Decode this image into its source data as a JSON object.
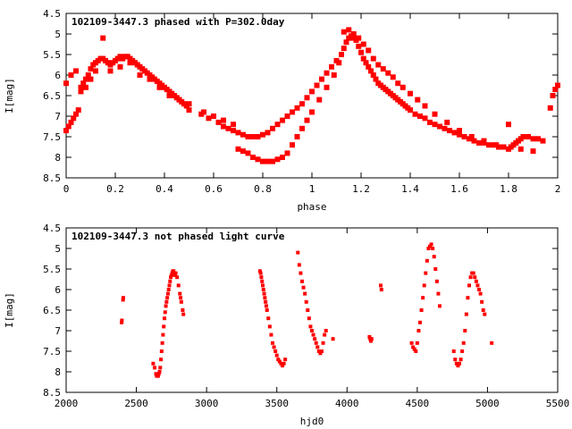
{
  "chart_data": [
    {
      "type": "scatter",
      "title": "102109-3447.3 phased with P=302.0day",
      "xlabel": "phase",
      "ylabel": "I[mag]",
      "xlim": [
        0,
        2
      ],
      "ylim": [
        4.5,
        8.5
      ],
      "y_inverted": true,
      "xticks": [
        0,
        0.2,
        0.4,
        0.6,
        0.8,
        1,
        1.2,
        1.4,
        1.6,
        1.8,
        2
      ],
      "xtick_labels": [
        "0",
        "0.2",
        "0.4",
        "0.6",
        "0.8",
        "1",
        "1.2",
        "1.4",
        "1.6",
        "1.8",
        "2"
      ],
      "yticks": [
        4.5,
        5,
        5.5,
        6,
        6.5,
        7,
        7.5,
        8,
        8.5
      ],
      "ytick_labels": [
        "4.5",
        "5",
        "5.5",
        "6",
        "6.5",
        "7",
        "7.5",
        "8",
        "8.5"
      ],
      "grid": false,
      "marker_color": "#ff0000",
      "series": [
        {
          "x": [
            0.0,
            0.01,
            0.02,
            0.03,
            0.04,
            0.05,
            0.06,
            0.07,
            0.08,
            0.09,
            0.1,
            0.11,
            0.12,
            0.13,
            0.14,
            0.15,
            0.16,
            0.17,
            0.18,
            0.19,
            0.2,
            0.21,
            0.22,
            0.23,
            0.24,
            0.25,
            0.26,
            0.27,
            0.28,
            0.29,
            0.3,
            0.31,
            0.32,
            0.33,
            0.34,
            0.35,
            0.36,
            0.37,
            0.38,
            0.39,
            0.4,
            0.41,
            0.42,
            0.43,
            0.44,
            0.45,
            0.46,
            0.47,
            0.48,
            0.49,
            0.5,
            0.55,
            0.58,
            0.62,
            0.64,
            0.66,
            0.68,
            0.7,
            0.72,
            0.74,
            0.76,
            0.78,
            0.8,
            0.82,
            0.84,
            0.86,
            0.88,
            0.9,
            0.92,
            0.94,
            0.96,
            0.98,
            1.0,
            1.02,
            1.04,
            1.06,
            1.08,
            1.1,
            1.12,
            1.13,
            1.14,
            1.15,
            1.16,
            1.17,
            1.18,
            1.19,
            1.2,
            1.21,
            1.22,
            1.23,
            1.24,
            1.25,
            1.26,
            1.27,
            1.28,
            1.29,
            1.3,
            1.31,
            1.32,
            1.33,
            1.34,
            1.35,
            1.36,
            1.37,
            1.38,
            1.39,
            1.4,
            1.42,
            1.44,
            1.46,
            1.48,
            1.5,
            1.52,
            1.54,
            1.56,
            1.58,
            1.6,
            1.62,
            1.64,
            1.66,
            1.68,
            1.7,
            1.72,
            1.74,
            1.76,
            1.78,
            1.8,
            1.81,
            1.82,
            1.83,
            1.84,
            1.85,
            1.86,
            1.88,
            1.9,
            1.92,
            1.94,
            1.97,
            1.98,
            1.99,
            2.0
          ],
          "y": [
            7.35,
            7.25,
            7.15,
            7.05,
            6.95,
            6.85,
            6.3,
            6.2,
            6.1,
            6.0,
            5.85,
            5.75,
            5.7,
            5.65,
            5.6,
            5.6,
            5.65,
            5.7,
            5.75,
            5.7,
            5.65,
            5.6,
            5.55,
            5.6,
            5.55,
            5.55,
            5.6,
            5.65,
            5.7,
            5.75,
            5.8,
            5.85,
            5.9,
            5.95,
            6.0,
            6.05,
            6.1,
            6.15,
            6.2,
            6.25,
            6.3,
            6.35,
            6.4,
            6.45,
            6.5,
            6.55,
            6.6,
            6.65,
            6.7,
            6.75,
            6.85,
            6.95,
            7.05,
            7.15,
            7.25,
            7.3,
            7.35,
            7.4,
            7.45,
            7.5,
            7.5,
            7.5,
            7.45,
            7.4,
            7.3,
            7.2,
            7.1,
            7.0,
            6.9,
            6.8,
            6.7,
            6.55,
            6.4,
            6.25,
            6.1,
            5.95,
            5.8,
            5.65,
            5.5,
            5.35,
            5.2,
            5.1,
            5.05,
            5.1,
            5.15,
            5.3,
            5.45,
            5.6,
            5.7,
            5.8,
            5.9,
            6.0,
            6.1,
            6.2,
            6.25,
            6.3,
            6.35,
            6.4,
            6.45,
            6.5,
            6.55,
            6.6,
            6.65,
            6.7,
            6.75,
            6.8,
            6.85,
            6.95,
            7.0,
            7.05,
            7.15,
            7.2,
            7.25,
            7.3,
            7.35,
            7.4,
            7.45,
            7.5,
            7.55,
            7.6,
            7.65,
            7.65,
            7.7,
            7.7,
            7.75,
            7.75,
            7.8,
            7.75,
            7.7,
            7.65,
            7.6,
            7.55,
            7.5,
            7.5,
            7.55,
            7.55,
            7.6,
            6.8,
            6.5,
            6.35,
            6.25
          ]
        },
        {
          "x": [
            0.0,
            0.02,
            0.04,
            0.06,
            0.08,
            0.1,
            0.12,
            0.15,
            0.18,
            0.22,
            0.26,
            0.3,
            0.34,
            0.38,
            0.42,
            0.46,
            0.5,
            0.56,
            0.6,
            0.64,
            0.68,
            0.7,
            0.72,
            0.74,
            0.76,
            0.78,
            0.8,
            0.82,
            0.84,
            0.86,
            0.88,
            0.9,
            0.92,
            0.94,
            0.96,
            0.98,
            1.0,
            1.03,
            1.06,
            1.09,
            1.11,
            1.13,
            1.15,
            1.17,
            1.19,
            1.21,
            1.23,
            1.25,
            1.27,
            1.29,
            1.31,
            1.33,
            1.35,
            1.37,
            1.4,
            1.43,
            1.46,
            1.5,
            1.55,
            1.6,
            1.65,
            1.7,
            1.75,
            1.8,
            1.85,
            1.9
          ],
          "y": [
            6.2,
            6.0,
            5.9,
            6.4,
            6.3,
            6.1,
            5.9,
            5.1,
            5.9,
            5.8,
            5.7,
            6.0,
            6.1,
            6.3,
            6.5,
            6.6,
            6.7,
            6.9,
            7.0,
            7.1,
            7.2,
            7.8,
            7.85,
            7.9,
            8.0,
            8.05,
            8.1,
            8.1,
            8.1,
            8.05,
            8.0,
            7.9,
            7.7,
            7.5,
            7.3,
            7.1,
            6.9,
            6.6,
            6.3,
            6.0,
            5.7,
            4.95,
            4.9,
            5.0,
            5.1,
            5.25,
            5.4,
            5.6,
            5.75,
            5.85,
            5.95,
            6.05,
            6.2,
            6.3,
            6.45,
            6.6,
            6.75,
            6.95,
            7.15,
            7.35,
            7.5,
            7.6,
            7.7,
            7.2,
            7.8,
            7.85
          ]
        }
      ]
    },
    {
      "type": "scatter",
      "title": "102109-3447.3 not phased light curve",
      "xlabel": "hjd0",
      "ylabel": "I[mag]",
      "xlim": [
        2000,
        5500
      ],
      "ylim": [
        4.5,
        8.5
      ],
      "y_inverted": true,
      "xticks": [
        2000,
        2500,
        3000,
        3500,
        4000,
        4500,
        5000,
        5500
      ],
      "xtick_labels": [
        "2000",
        "2500",
        "3000",
        "3500",
        "4000",
        "4500",
        "5000",
        "5500"
      ],
      "yticks": [
        4.5,
        5,
        5.5,
        6,
        6.5,
        7,
        7.5,
        8,
        8.5
      ],
      "ytick_labels": [
        "4.5",
        "5",
        "5.5",
        "6",
        "6.5",
        "7",
        "7.5",
        "8",
        "8.5"
      ],
      "grid": false,
      "marker_color": "#ff0000",
      "series": [
        {
          "x": [
            2395,
            2397,
            2405,
            2407,
            2620,
            2630,
            2640,
            2645,
            2650,
            2655,
            2660,
            2665,
            2670,
            2675,
            2680,
            2685,
            2690,
            2695,
            2700,
            2705,
            2710,
            2715,
            2720,
            2725,
            2730,
            2735,
            2740,
            2745,
            2750,
            2755,
            2760,
            2765,
            2770,
            2775,
            2780,
            2790,
            2800,
            2810,
            2815,
            2820,
            2830,
            2835,
            3380,
            3385,
            3390,
            3395,
            3400,
            3405,
            3410,
            3415,
            3420,
            3425,
            3430,
            3440,
            3450,
            3460,
            3470,
            3480,
            3490,
            3500,
            3510,
            3520,
            3530,
            3540,
            3550,
            3560,
            3650,
            3660,
            3670,
            3680,
            3690,
            3700,
            3710,
            3720,
            3730,
            3740,
            3750,
            3760,
            3770,
            3780,
            3790,
            3800,
            3810,
            3820,
            3830,
            3840,
            3850,
            3900,
            4160,
            4165,
            4170,
            4175,
            4240,
            4245,
            4460,
            4470,
            4480,
            4490,
            4500,
            4510,
            4520,
            4530,
            4540,
            4550,
            4560,
            4570,
            4580,
            4590,
            4600,
            4610,
            4620,
            4630,
            4640,
            4650,
            4660,
            4760,
            4770,
            4780,
            4790,
            4800,
            4810,
            4820,
            4830,
            4840,
            4850,
            4860,
            4870,
            4880,
            4890,
            4900,
            4910,
            4920,
            4930,
            4940,
            4950,
            4960,
            4970,
            4980,
            5030
          ],
          "y": [
            6.8,
            6.75,
            6.25,
            6.2,
            7.8,
            7.9,
            8.05,
            8.1,
            8.1,
            8.1,
            8.05,
            8.0,
            7.9,
            7.7,
            7.5,
            7.3,
            7.1,
            6.9,
            6.7,
            6.55,
            6.4,
            6.3,
            6.2,
            6.1,
            6.0,
            5.9,
            5.8,
            5.7,
            5.65,
            5.6,
            5.55,
            5.55,
            5.6,
            5.65,
            5.6,
            5.7,
            5.9,
            6.1,
            6.2,
            6.3,
            6.5,
            6.6,
            5.55,
            5.6,
            5.7,
            5.8,
            5.9,
            6.0,
            6.1,
            6.2,
            6.3,
            6.4,
            6.5,
            6.7,
            6.9,
            7.1,
            7.3,
            7.4,
            7.5,
            7.6,
            7.7,
            7.75,
            7.8,
            7.85,
            7.8,
            7.7,
            5.1,
            5.4,
            5.6,
            5.8,
            5.95,
            6.1,
            6.3,
            6.5,
            6.7,
            6.9,
            7.0,
            7.1,
            7.2,
            7.3,
            7.4,
            7.5,
            7.55,
            7.5,
            7.3,
            7.1,
            7.0,
            7.2,
            7.15,
            7.2,
            7.25,
            7.2,
            5.9,
            6.0,
            7.3,
            7.4,
            7.45,
            7.5,
            7.3,
            7.0,
            6.8,
            6.5,
            6.2,
            5.9,
            5.6,
            5.3,
            5.0,
            4.95,
            4.9,
            5.0,
            5.2,
            5.5,
            5.8,
            6.1,
            6.4,
            7.5,
            7.7,
            7.8,
            7.85,
            7.8,
            7.7,
            7.5,
            7.3,
            7.0,
            6.6,
            6.2,
            5.9,
            5.7,
            5.6,
            5.6,
            5.7,
            5.8,
            5.9,
            6.0,
            6.1,
            6.3,
            6.5,
            6.6,
            7.3
          ]
        }
      ]
    }
  ]
}
